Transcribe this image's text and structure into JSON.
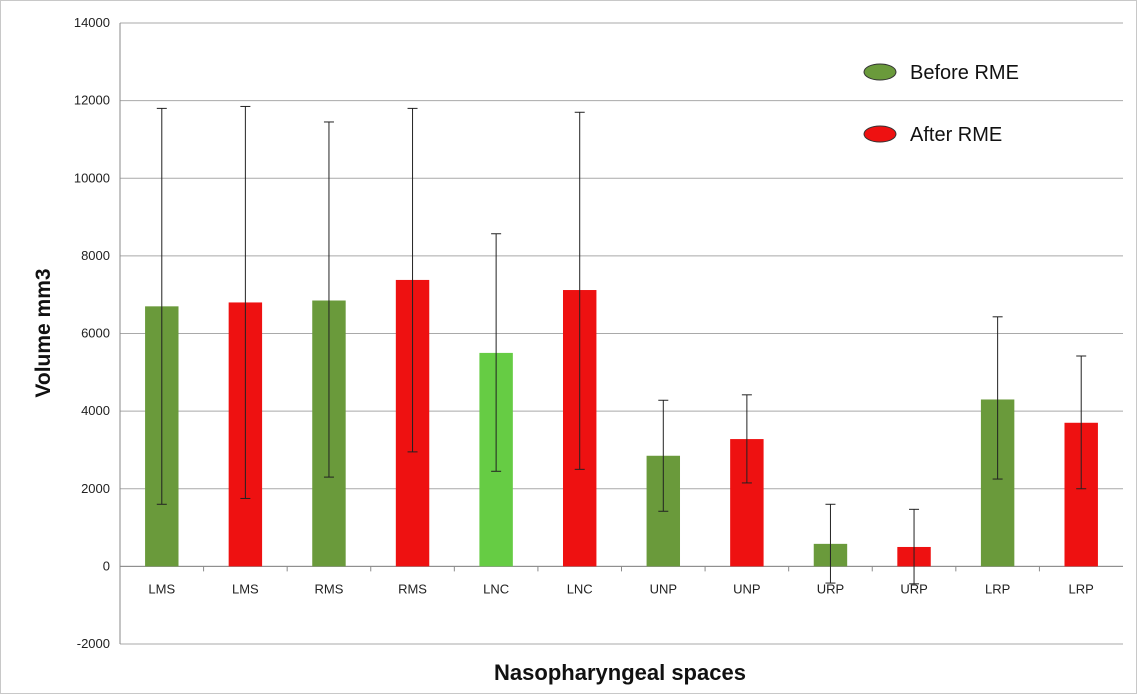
{
  "chart_data": {
    "type": "bar",
    "xlabel": "Nasopharyngeal spaces",
    "ylabel": "Volume mm3",
    "ylim": [
      -2000,
      14000
    ],
    "yticks": [
      "14000",
      "12000",
      "10000",
      "8000",
      "6000",
      "4000",
      "2000",
      "0",
      "-2000"
    ],
    "grid": "horizontal",
    "legend": {
      "placement": "top-right",
      "entries": [
        {
          "label": "Before RME",
          "color": "#6a9a3b"
        },
        {
          "label": "After RME",
          "color": "#ee1111"
        }
      ]
    },
    "bars": [
      {
        "category": "LMS",
        "value": 6700,
        "err_low": 1600,
        "err_high": 11800,
        "color": "#6a9a3b"
      },
      {
        "category": "LMS",
        "value": 6800,
        "err_low": 1750,
        "err_high": 11850,
        "color": "#ee1111"
      },
      {
        "category": "RMS",
        "value": 6850,
        "err_low": 2300,
        "err_high": 11450,
        "color": "#6a9a3b"
      },
      {
        "category": "RMS",
        "value": 7380,
        "err_low": 2950,
        "err_high": 11800,
        "color": "#ee1111"
      },
      {
        "category": "LNC",
        "value": 5500,
        "err_low": 2450,
        "err_high": 8570,
        "color": "#66cc44"
      },
      {
        "category": "LNC",
        "value": 7120,
        "err_low": 2500,
        "err_high": 11700,
        "color": "#ee1111"
      },
      {
        "category": "UNP",
        "value": 2850,
        "err_low": 1420,
        "err_high": 4280,
        "color": "#6a9a3b"
      },
      {
        "category": "UNP",
        "value": 3280,
        "err_low": 2150,
        "err_high": 4420,
        "color": "#ee1111"
      },
      {
        "category": "URP",
        "value": 580,
        "err_low": -430,
        "err_high": 1600,
        "color": "#6a9a3b"
      },
      {
        "category": "URP",
        "value": 500,
        "err_low": -450,
        "err_high": 1470,
        "color": "#ee1111"
      },
      {
        "category": "LRP",
        "value": 4300,
        "err_low": 2250,
        "err_high": 6430,
        "color": "#6a9a3b"
      },
      {
        "category": "LRP",
        "value": 3700,
        "err_low": 2000,
        "err_high": 5420,
        "color": "#ee1111"
      }
    ]
  }
}
